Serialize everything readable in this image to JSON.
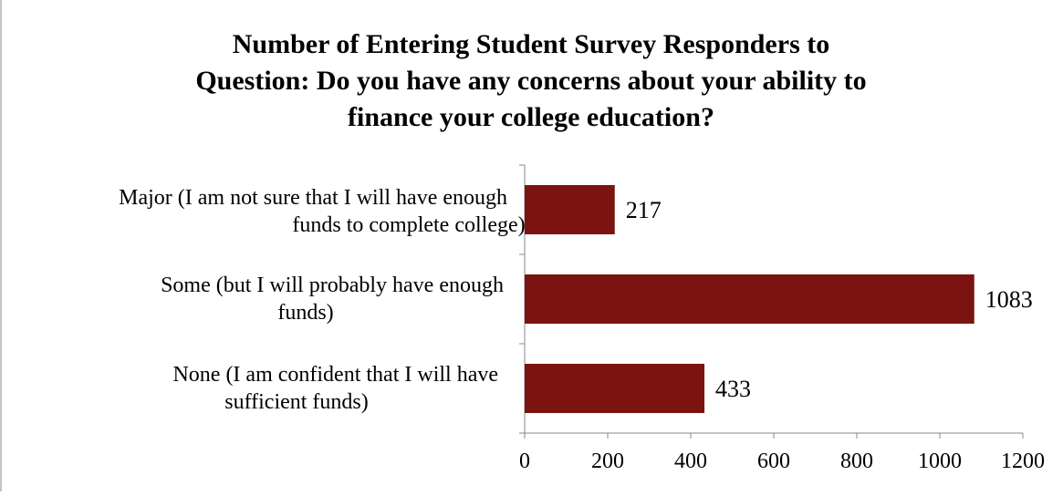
{
  "chart_data": {
    "type": "bar",
    "orientation": "horizontal",
    "title": [
      "Number of Entering Student Survey Responders to",
      "Question: Do you have any concerns about your ability to",
      "finance your college education?"
    ],
    "categories": [
      [
        "Major (I am not sure that I will have enough",
        "funds to complete college)"
      ],
      [
        "Some (but I will probably have enough",
        "funds)"
      ],
      [
        "None (I am confident that I will have",
        "sufficient funds)"
      ]
    ],
    "values": [
      217,
      1083,
      433
    ],
    "data_labels": [
      "217",
      "1083",
      "433"
    ],
    "xlim": [
      0,
      1200
    ],
    "xticks": [
      0,
      200,
      400,
      600,
      800,
      1000,
      1200
    ],
    "xtick_labels": [
      "0",
      "200",
      "400",
      "600",
      "800",
      "1000",
      "1200"
    ],
    "grid": false,
    "legend": "none",
    "bar_color": "#7b1410",
    "axis_color": "#888888",
    "text_color": "#000000"
  }
}
